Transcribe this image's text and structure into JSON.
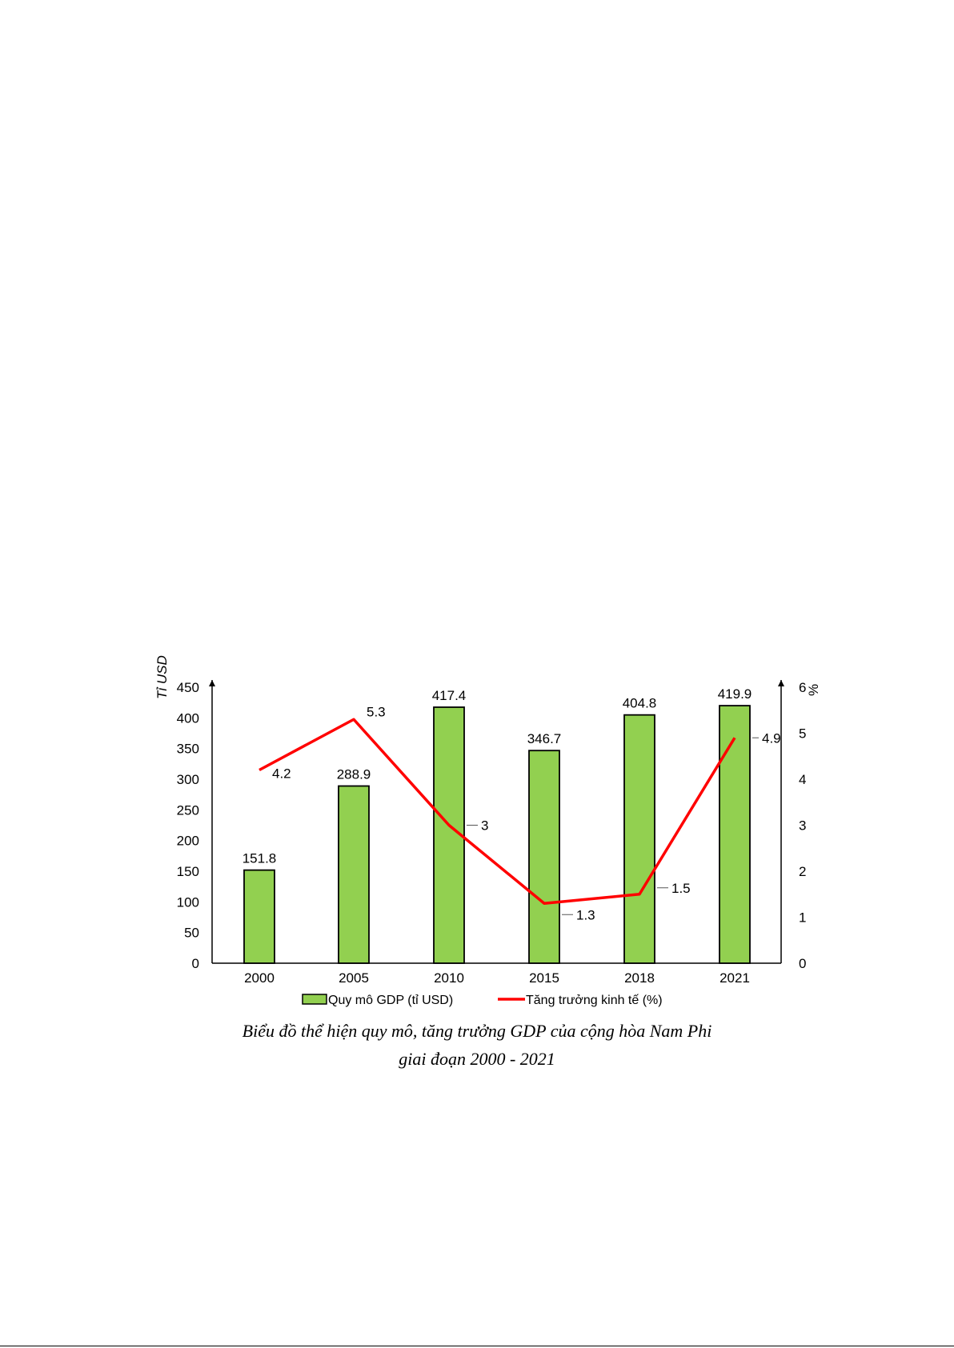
{
  "chart_data": {
    "type": "bar",
    "categories": [
      "2000",
      "2005",
      "2010",
      "2015",
      "2018",
      "2021"
    ],
    "series": [
      {
        "name": "Quy mô GDP (tỉ USD)",
        "type": "bar",
        "axis": "left",
        "values": [
          151.8,
          288.9,
          417.4,
          346.7,
          404.8,
          419.9
        ],
        "labels": [
          "151.8",
          "288.9",
          "417.4",
          "346.7",
          "404.8",
          "419.9"
        ],
        "color": "#92D050"
      },
      {
        "name": "Tăng trưởng kinh tế (%)",
        "type": "line",
        "axis": "right",
        "values": [
          4.2,
          5.3,
          3.0,
          1.3,
          1.5,
          4.9
        ],
        "labels": [
          "4.2",
          "5.3",
          "3",
          "1.3",
          "1.5",
          "4.9"
        ],
        "color": "#FF0000"
      }
    ],
    "ylabel": "Tỉ USD",
    "ylabel_right": "%",
    "ylim": [
      0,
      450
    ],
    "ylim_right": [
      0,
      6
    ],
    "y_ticks": [
      "0",
      "50",
      "100",
      "150",
      "200",
      "250",
      "300",
      "350",
      "400",
      "450"
    ],
    "y_ticks_right": [
      "0",
      "1",
      "2",
      "3",
      "4",
      "5",
      "6"
    ],
    "legend_position": "bottom",
    "grid": false
  },
  "caption": {
    "line1": "Biểu đồ thể hiện quy mô, tăng trưởng GDP của cộng hòa Nam Phi",
    "line2": "giai đoạn 2000 - 2021"
  }
}
